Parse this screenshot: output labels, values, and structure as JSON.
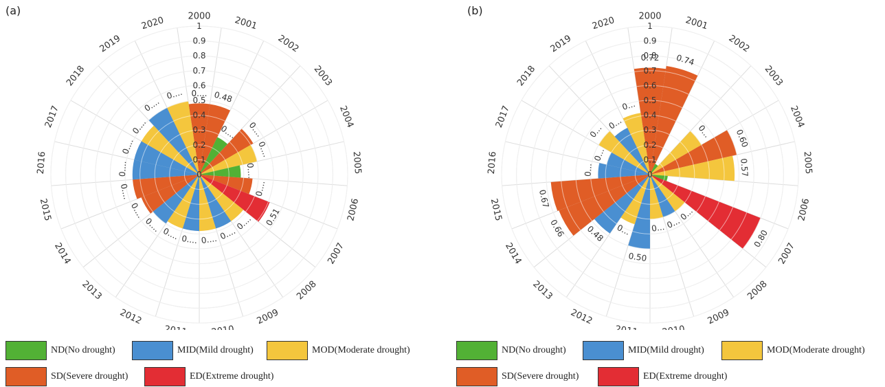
{
  "chart_data": [
    {
      "type": "polar-bar",
      "panel_label": "(a)",
      "categories": [
        "2000",
        "2001",
        "2002",
        "2003",
        "2004",
        "2005",
        "2006",
        "2007",
        "2008",
        "2009",
        "2010",
        "2011",
        "2012",
        "2013",
        "2014",
        "2015",
        "2016",
        "2017",
        "2018",
        "2019",
        "2020"
      ],
      "values": [
        0.48,
        0.48,
        0.28,
        0.42,
        0.4,
        0.28,
        0.36,
        0.51,
        0.38,
        0.38,
        0.38,
        0.38,
        0.38,
        0.4,
        0.42,
        0.45,
        0.45,
        0.45,
        0.45,
        0.5,
        0.5
      ],
      "classes": [
        "SD",
        "SD",
        "ND",
        "SD",
        "MOD",
        "ND",
        "SD",
        "ED",
        "MOD",
        "MID",
        "MOD",
        "MID",
        "MOD",
        "MID",
        "SD",
        "SD",
        "MID",
        "MID",
        "MOD",
        "MID",
        "MOD"
      ],
      "labels": [
        "0....",
        "0.48",
        "0....",
        "0....",
        "0....",
        "0....",
        "0....",
        "0.51",
        "0....",
        "0....",
        "0....",
        "0....",
        "0....",
        "0....",
        "0....",
        "0....",
        "0....",
        "0....",
        "0....",
        "0....",
        "0...."
      ],
      "ticks": [
        "0",
        "0.1",
        "0.2",
        "0.3",
        "0.4",
        "0.5",
        "0.6",
        "0.7",
        "0.8",
        "0.9",
        "1"
      ],
      "rlim": [
        0,
        1
      ]
    },
    {
      "type": "polar-bar",
      "panel_label": "(b)",
      "categories": [
        "2000",
        "2001",
        "2002",
        "2003",
        "2004",
        "2005",
        "2006",
        "2007",
        "2008",
        "2009",
        "2010",
        "2011",
        "2012",
        "2013",
        "2014",
        "2015",
        "2016",
        "2017",
        "2018",
        "2019",
        "2020"
      ],
      "values": [
        0.72,
        0.74,
        0.08,
        0.4,
        0.6,
        0.57,
        0.12,
        0.8,
        0.3,
        0.3,
        0.3,
        0.5,
        0.35,
        0.48,
        0.66,
        0.67,
        0.35,
        0.3,
        0.4,
        0.35,
        0.42
      ],
      "classes": [
        "SD",
        "SD",
        "ND",
        "MOD",
        "SD",
        "MOD",
        "ND",
        "ED",
        "MOD",
        "MID",
        "MOD",
        "MID",
        "MOD",
        "MID",
        "SD",
        "SD",
        "MID",
        "MID",
        "MOD",
        "MID",
        "MOD"
      ],
      "labels": [
        "0.72",
        "0.74",
        "",
        "0...",
        "0.60",
        "0.57",
        "",
        "0.80",
        "0...",
        "0...",
        "0...",
        "0.50",
        "0...",
        "0.48",
        "0.66",
        "0.67",
        "0...",
        "0...",
        "0...",
        "0...",
        "0..."
      ],
      "ticks": [
        "0",
        "0.1",
        "0.2",
        "0.3",
        "0.4",
        "0.5",
        "0.6",
        "0.7",
        "0.8",
        "0.9",
        "1"
      ],
      "rlim": [
        0,
        1
      ]
    }
  ],
  "legend": [
    {
      "key": "ND",
      "label": "ND(No drought)",
      "color": "#52b135"
    },
    {
      "key": "MID",
      "label": "MID(Mild drought)",
      "color": "#4a8fd1"
    },
    {
      "key": "MOD",
      "label": "MOD(Moderate drought)",
      "color": "#f4c63d"
    },
    {
      "key": "SD",
      "label": "SD(Severe drought)",
      "color": "#e05d26"
    },
    {
      "key": "ED",
      "label": "ED(Extreme drought)",
      "color": "#e32d34"
    }
  ]
}
